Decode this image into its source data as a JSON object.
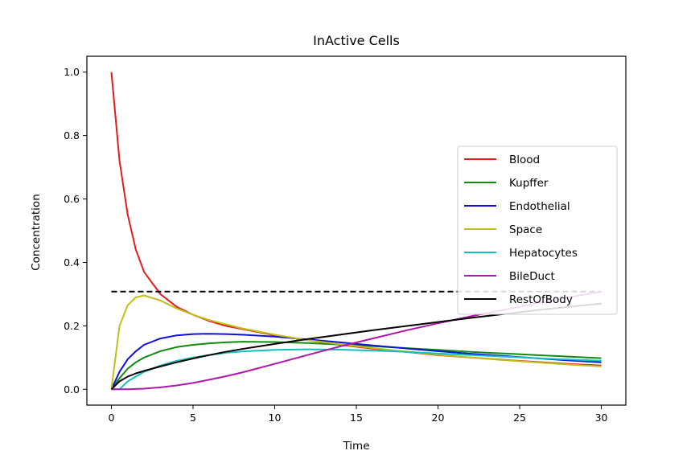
{
  "chart_data": {
    "type": "line",
    "title": "InActive Cells",
    "xlabel": "Time",
    "ylabel": "Concentration",
    "xlim": [
      -1.5,
      31.5
    ],
    "ylim": [
      -0.05,
      1.05
    ],
    "xticks": [
      0,
      5,
      10,
      15,
      20,
      25,
      30
    ],
    "yticks": [
      0.0,
      0.2,
      0.4,
      0.6,
      0.8,
      1.0
    ],
    "xtick_labels": [
      "0",
      "5",
      "10",
      "15",
      "20",
      "25",
      "30"
    ],
    "ytick_labels": [
      "0.0",
      "0.2",
      "0.4",
      "0.6",
      "0.8",
      "1.0"
    ],
    "grid": false,
    "legend_position": "center-right",
    "x": [
      0,
      0.5,
      1,
      1.5,
      2,
      3,
      4,
      5,
      6,
      7,
      8,
      10,
      12,
      14,
      16,
      18,
      20,
      22,
      24,
      26,
      28,
      30
    ],
    "series": [
      {
        "name": "Blood",
        "color": "#e41a1c",
        "values": [
          1.0,
          0.72,
          0.55,
          0.44,
          0.37,
          0.3,
          0.26,
          0.235,
          0.215,
          0.2,
          0.19,
          0.17,
          0.155,
          0.14,
          0.128,
          0.118,
          0.108,
          0.1,
          0.093,
          0.086,
          0.08,
          0.075
        ]
      },
      {
        "name": "Kupffer",
        "color": "#138a13",
        "values": [
          0.0,
          0.035,
          0.065,
          0.085,
          0.1,
          0.12,
          0.133,
          0.14,
          0.145,
          0.148,
          0.15,
          0.149,
          0.146,
          0.141,
          0.136,
          0.13,
          0.124,
          0.118,
          0.113,
          0.108,
          0.103,
          0.098
        ]
      },
      {
        "name": "Endothelial",
        "color": "#1010d8",
        "values": [
          0.0,
          0.055,
          0.095,
          0.12,
          0.14,
          0.16,
          0.17,
          0.174,
          0.175,
          0.174,
          0.172,
          0.166,
          0.157,
          0.148,
          0.138,
          0.129,
          0.12,
          0.112,
          0.105,
          0.098,
          0.091,
          0.085
        ]
      },
      {
        "name": "Space",
        "color": "#bfbf1a",
        "values": [
          0.0,
          0.2,
          0.265,
          0.29,
          0.296,
          0.28,
          0.255,
          0.235,
          0.218,
          0.205,
          0.192,
          0.172,
          0.155,
          0.142,
          0.13,
          0.119,
          0.109,
          0.1,
          0.092,
          0.085,
          0.078,
          0.072
        ]
      },
      {
        "name": "Hepatocytes",
        "color": "#14c0c0",
        "values": [
          0.0,
          0.0,
          0.025,
          0.04,
          0.055,
          0.075,
          0.09,
          0.1,
          0.108,
          0.115,
          0.119,
          0.124,
          0.126,
          0.125,
          0.122,
          0.118,
          0.113,
          0.108,
          0.103,
          0.098,
          0.094,
          0.09
        ]
      },
      {
        "name": "BileDuct",
        "color": "#b015b0",
        "values": [
          0.0,
          0.0,
          0.0,
          0.001,
          0.002,
          0.006,
          0.012,
          0.02,
          0.03,
          0.041,
          0.053,
          0.08,
          0.108,
          0.135,
          0.16,
          0.185,
          0.208,
          0.23,
          0.25,
          0.27,
          0.29,
          0.308
        ]
      },
      {
        "name": "RestOfBody",
        "color": "#000000",
        "values": [
          0.0,
          0.025,
          0.04,
          0.05,
          0.058,
          0.072,
          0.085,
          0.097,
          0.108,
          0.118,
          0.127,
          0.143,
          0.158,
          0.172,
          0.186,
          0.199,
          0.212,
          0.225,
          0.237,
          0.249,
          0.26,
          0.27
        ]
      }
    ],
    "reference_line": {
      "y": 0.308,
      "x_range": [
        0,
        30
      ],
      "color": "#000000",
      "style": "dashed"
    }
  }
}
